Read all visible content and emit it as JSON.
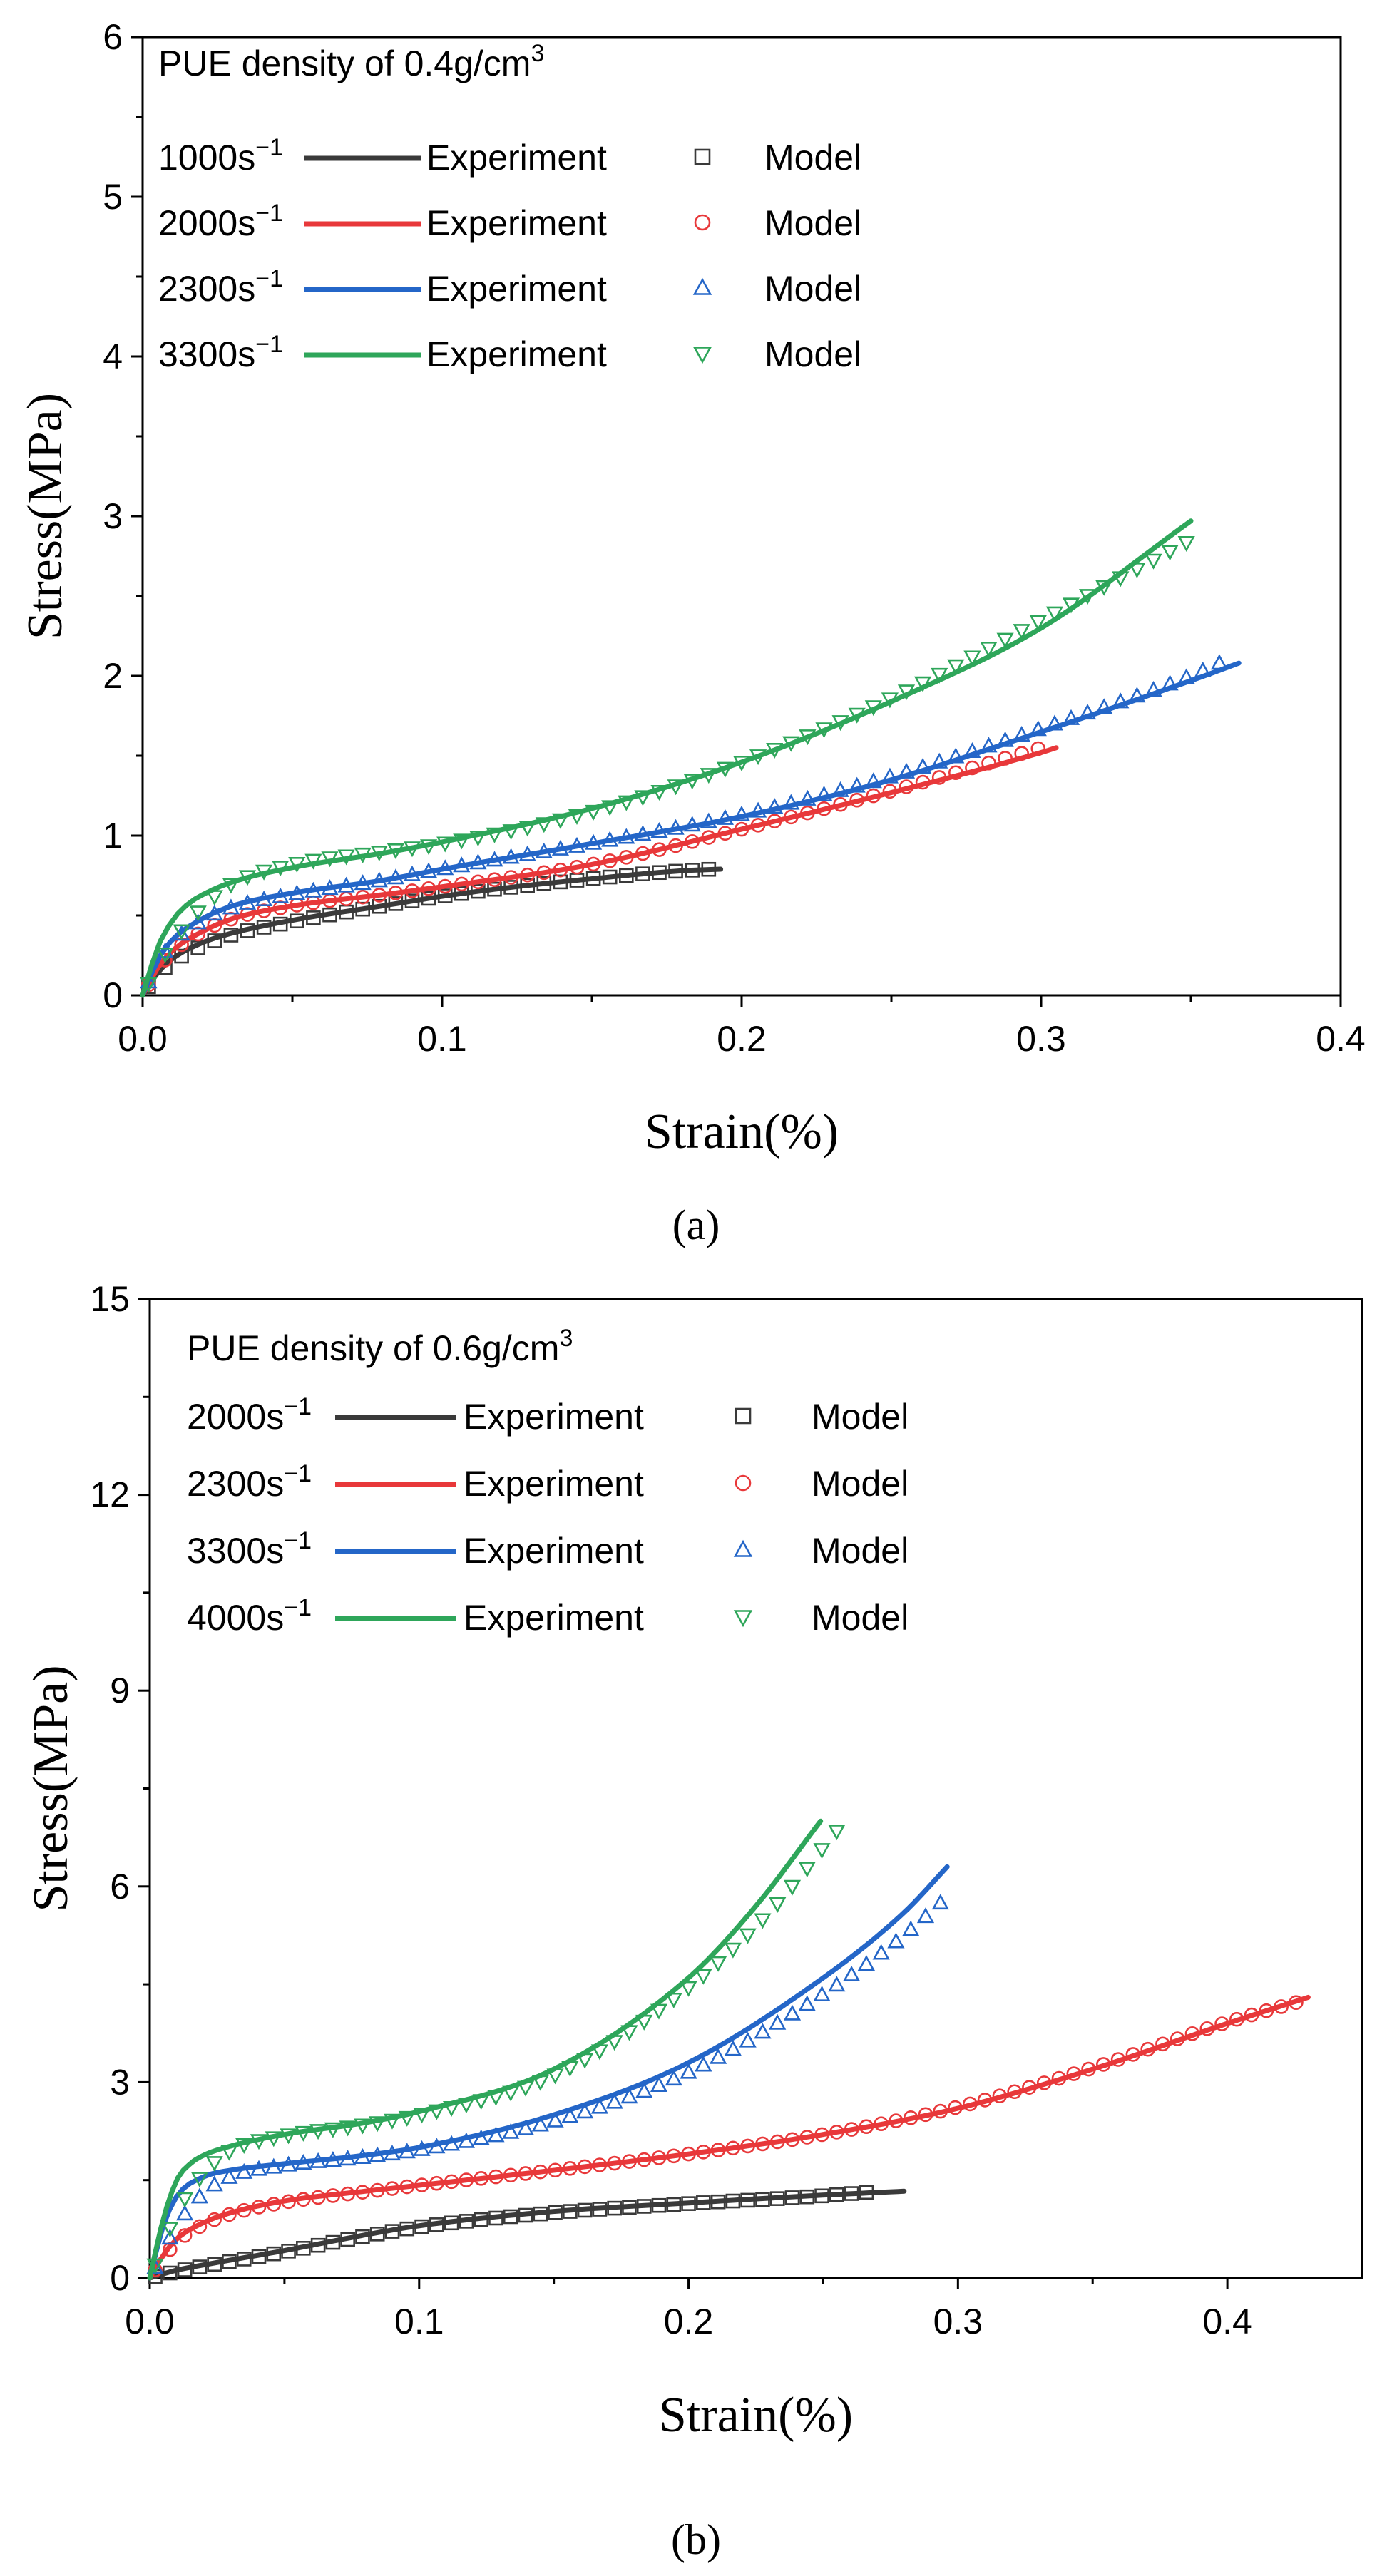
{
  "chart_data": [
    {
      "type": "line",
      "panel_label": "(a)",
      "title": "",
      "xlabel": "Strain(%)",
      "ylabel": "Stress(MPa)",
      "xlim": [
        0,
        0.4
      ],
      "ylim": [
        0,
        6
      ],
      "xticks": [
        0,
        0.1,
        0.2,
        0.3,
        0.4
      ],
      "xtick_labels": [
        "0.0",
        "0.1",
        "0.2",
        "0.3",
        "0.4"
      ],
      "yticks": [
        0,
        1,
        2,
        3,
        4,
        5,
        6
      ],
      "ytick_labels": [
        "0",
        "1",
        "2",
        "3",
        "4",
        "5",
        "6"
      ],
      "legend_title_prefix": "PUE density of 0.4g/cm",
      "legend_title_sup": "3",
      "legend_placement": "top-left",
      "experiment_label": "Experiment",
      "model_label": "Model",
      "series": [
        {
          "rate": "1000s",
          "sup": "−1",
          "color": "#3a3a3a",
          "marker": "square",
          "experiment": {
            "x": [
              0,
              0.005,
              0.01,
              0.02,
              0.03,
              0.05,
              0.08,
              0.1,
              0.12,
              0.15,
              0.18,
              0.193
            ],
            "y": [
              0,
              0.14,
              0.23,
              0.33,
              0.39,
              0.47,
              0.56,
              0.62,
              0.67,
              0.73,
              0.78,
              0.79
            ]
          },
          "model": {
            "x": [
              0,
              0.005,
              0.01,
              0.02,
              0.03,
              0.05,
              0.08,
              0.1,
              0.12,
              0.15,
              0.18,
              0.19
            ],
            "y": [
              0,
              0.13,
              0.21,
              0.31,
              0.38,
              0.46,
              0.56,
              0.62,
              0.67,
              0.73,
              0.78,
              0.79
            ]
          }
        },
        {
          "rate": "2000s",
          "sup": "−1",
          "color": "#e8383a",
          "marker": "circle",
          "experiment": {
            "x": [
              0,
              0.005,
              0.01,
              0.02,
              0.03,
              0.05,
              0.08,
              0.1,
              0.15,
              0.2,
              0.25,
              0.3,
              0.305
            ],
            "y": [
              0,
              0.17,
              0.28,
              0.4,
              0.48,
              0.56,
              0.63,
              0.68,
              0.82,
              1.04,
              1.27,
              1.52,
              1.55
            ]
          },
          "model": {
            "x": [
              0,
              0.005,
              0.01,
              0.02,
              0.03,
              0.05,
              0.08,
              0.1,
              0.15,
              0.2,
              0.25,
              0.3
            ],
            "y": [
              0,
              0.16,
              0.27,
              0.4,
              0.48,
              0.56,
              0.63,
              0.68,
              0.82,
              1.04,
              1.28,
              1.55
            ]
          }
        },
        {
          "rate": "2300s",
          "sup": "−1",
          "color": "#2466c8",
          "marker": "triangle-up",
          "experiment": {
            "x": [
              0,
              0.005,
              0.01,
              0.02,
              0.03,
              0.05,
              0.08,
              0.1,
              0.15,
              0.2,
              0.25,
              0.3,
              0.35,
              0.366
            ],
            "y": [
              0,
              0.22,
              0.35,
              0.48,
              0.56,
              0.64,
              0.72,
              0.79,
              0.95,
              1.12,
              1.35,
              1.65,
              1.97,
              2.08
            ]
          },
          "model": {
            "x": [
              0,
              0.005,
              0.01,
              0.02,
              0.03,
              0.05,
              0.08,
              0.1,
              0.15,
              0.2,
              0.25,
              0.3,
              0.35,
              0.362
            ],
            "y": [
              0,
              0.2,
              0.33,
              0.47,
              0.55,
              0.63,
              0.72,
              0.79,
              0.95,
              1.13,
              1.37,
              1.67,
              2.0,
              2.1
            ]
          }
        },
        {
          "rate": "3300s",
          "sup": "−1",
          "color": "#2ea65a",
          "marker": "triangle-down",
          "experiment": {
            "x": [
              0,
              0.005,
              0.01,
              0.015,
              0.02,
              0.03,
              0.05,
              0.08,
              0.1,
              0.15,
              0.2,
              0.25,
              0.3,
              0.35
            ],
            "y": [
              0,
              0.3,
              0.47,
              0.57,
              0.63,
              0.71,
              0.8,
              0.89,
              0.96,
              1.17,
              1.46,
              1.84,
              2.3,
              2.97
            ]
          },
          "model": {
            "x": [
              0,
              0.005,
              0.01,
              0.02,
              0.03,
              0.05,
              0.08,
              0.1,
              0.15,
              0.2,
              0.25,
              0.3,
              0.35
            ],
            "y": [
              0,
              0.18,
              0.33,
              0.55,
              0.7,
              0.82,
              0.9,
              0.95,
              1.15,
              1.46,
              1.86,
              2.35,
              2.85
            ]
          }
        }
      ]
    },
    {
      "type": "line",
      "panel_label": "(b)",
      "title": "",
      "xlabel": "Strain(%)",
      "ylabel": "Stress(MPa)",
      "xlim": [
        0,
        0.45
      ],
      "ylim": [
        0,
        15
      ],
      "xticks": [
        0,
        0.1,
        0.2,
        0.3,
        0.4
      ],
      "xtick_labels": [
        "0.0",
        "0.1",
        "0.2",
        "0.3",
        "0.4"
      ],
      "yticks": [
        0,
        3,
        6,
        9,
        12,
        15
      ],
      "ytick_labels": [
        "0",
        "3",
        "6",
        "9",
        "12",
        "15"
      ],
      "legend_title_prefix": "PUE density of 0.6g/cm",
      "legend_title_sup": "3",
      "legend_placement": "top-left",
      "experiment_label": "Experiment",
      "model_label": "Model",
      "series": [
        {
          "rate": "2000s",
          "sup": "−1",
          "color": "#3a3a3a",
          "marker": "square",
          "experiment": {
            "x": [
              0,
              0.01,
              0.02,
              0.05,
              0.08,
              0.1,
              0.15,
              0.2,
              0.25,
              0.28
            ],
            "y": [
              0,
              0.12,
              0.2,
              0.42,
              0.66,
              0.8,
              1.02,
              1.15,
              1.27,
              1.33
            ]
          },
          "model": {
            "x": [
              0,
              0.01,
              0.02,
              0.05,
              0.08,
              0.1,
              0.15,
              0.2,
              0.25,
              0.268
            ],
            "y": [
              0,
              0.1,
              0.18,
              0.4,
              0.64,
              0.78,
              1.0,
              1.14,
              1.26,
              1.32
            ]
          }
        },
        {
          "rate": "2300s",
          "sup": "−1",
          "color": "#e8383a",
          "marker": "circle",
          "experiment": {
            "x": [
              0,
              0.005,
              0.01,
              0.02,
              0.03,
              0.05,
              0.08,
              0.1,
              0.15,
              0.2,
              0.25,
              0.3,
              0.35,
              0.4,
              0.43
            ],
            "y": [
              0,
              0.35,
              0.6,
              0.85,
              1.0,
              1.18,
              1.33,
              1.42,
              1.65,
              1.9,
              2.2,
              2.6,
              3.2,
              3.9,
              4.3
            ]
          },
          "model": {
            "x": [
              0,
              0.005,
              0.01,
              0.02,
              0.03,
              0.05,
              0.08,
              0.1,
              0.15,
              0.2,
              0.25,
              0.3,
              0.35,
              0.4,
              0.428
            ],
            "y": [
              0,
              0.3,
              0.55,
              0.82,
              0.98,
              1.16,
              1.32,
              1.42,
              1.65,
              1.9,
              2.2,
              2.62,
              3.22,
              3.92,
              4.25
            ]
          }
        },
        {
          "rate": "3300s",
          "sup": "−1",
          "color": "#2466c8",
          "marker": "triangle-up",
          "experiment": {
            "x": [
              0,
              0.005,
              0.01,
              0.02,
              0.03,
              0.05,
              0.08,
              0.1,
              0.15,
              0.2,
              0.25,
              0.28,
              0.296
            ],
            "y": [
              0,
              0.8,
              1.25,
              1.55,
              1.65,
              1.75,
              1.88,
              2.0,
              2.5,
              3.3,
              4.6,
              5.6,
              6.3
            ]
          },
          "model": {
            "x": [
              0,
              0.005,
              0.01,
              0.02,
              0.03,
              0.05,
              0.08,
              0.1,
              0.15,
              0.2,
              0.25,
              0.28,
              0.295
            ],
            "y": [
              0,
              0.4,
              0.8,
              1.3,
              1.55,
              1.72,
              1.85,
              1.96,
              2.4,
              3.15,
              4.35,
              5.25,
              5.8
            ]
          }
        },
        {
          "rate": "4000s",
          "sup": "−1",
          "color": "#2ea65a",
          "marker": "triangle-down",
          "experiment": {
            "x": [
              0,
              0.005,
              0.01,
              0.015,
              0.02,
              0.03,
              0.05,
              0.08,
              0.1,
              0.15,
              0.2,
              0.225,
              0.249
            ],
            "y": [
              0,
              0.9,
              1.5,
              1.75,
              1.88,
              2.02,
              2.2,
              2.38,
              2.55,
              3.2,
              4.6,
              5.7,
              7.0
            ]
          },
          "model": {
            "x": [
              0,
              0.005,
              0.01,
              0.02,
              0.03,
              0.05,
              0.08,
              0.1,
              0.15,
              0.2,
              0.23,
              0.258
            ],
            "y": [
              0,
              0.5,
              1.0,
              1.6,
              1.95,
              2.18,
              2.35,
              2.5,
              3.1,
              4.45,
              5.6,
              7.0
            ]
          }
        }
      ]
    }
  ]
}
